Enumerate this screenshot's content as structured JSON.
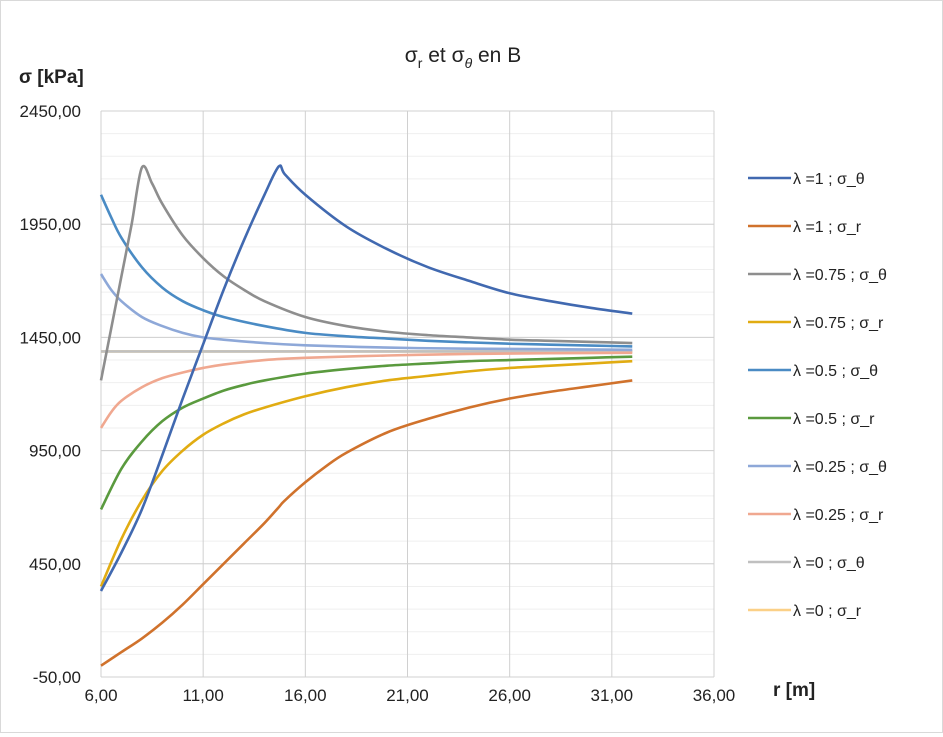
{
  "chart_data": {
    "type": "line",
    "title": {
      "base1": "σ",
      "sub1": "r",
      "mid": " et σ",
      "sub2": "θ",
      "tail": " en B"
    },
    "ylabel": "σ [kPa]",
    "xlabel": "r [m]",
    "xlim": [
      6,
      36
    ],
    "ylim": [
      -50,
      2450
    ],
    "xticks": [
      6,
      11,
      16,
      21,
      26,
      31,
      36
    ],
    "xtick_labels": [
      "6,00",
      "11,00",
      "16,00",
      "21,00",
      "26,00",
      "31,00",
      "36,00"
    ],
    "yticks": [
      -50,
      450,
      950,
      1450,
      1950,
      2450
    ],
    "ytick_labels": [
      "-50,00",
      "450,00",
      "950,00",
      "1450,00",
      "1950,00",
      "2450,00"
    ],
    "grid": true,
    "legend_position": "right",
    "series": [
      {
        "name": "λ =1 ; σ_θ",
        "color": "#4169b0",
        "points": [
          [
            6,
            330
          ],
          [
            7,
            500
          ],
          [
            8,
            690
          ],
          [
            9,
            930
          ],
          [
            10,
            1180
          ],
          [
            11,
            1420
          ],
          [
            12,
            1660
          ],
          [
            13,
            1880
          ],
          [
            14,
            2080
          ],
          [
            14.7,
            2205
          ],
          [
            15,
            2170
          ],
          [
            16,
            2080
          ],
          [
            18,
            1940
          ],
          [
            20,
            1840
          ],
          [
            22,
            1760
          ],
          [
            24,
            1700
          ],
          [
            26,
            1645
          ],
          [
            28,
            1610
          ],
          [
            30,
            1580
          ],
          [
            32,
            1555
          ]
        ]
      },
      {
        "name": "λ =1 ; σ_r",
        "color": "#d0722c",
        "points": [
          [
            6,
            0
          ],
          [
            7,
            60
          ],
          [
            8,
            120
          ],
          [
            9,
            190
          ],
          [
            10,
            270
          ],
          [
            11,
            360
          ],
          [
            12,
            450
          ],
          [
            13,
            540
          ],
          [
            14,
            630
          ],
          [
            14.7,
            700
          ],
          [
            15,
            730
          ],
          [
            16,
            810
          ],
          [
            17,
            880
          ],
          [
            18,
            940
          ],
          [
            20,
            1030
          ],
          [
            22,
            1090
          ],
          [
            24,
            1140
          ],
          [
            26,
            1180
          ],
          [
            28,
            1210
          ],
          [
            30,
            1235
          ],
          [
            32,
            1260
          ]
        ]
      },
      {
        "name": "λ =0.75 ; σ_θ",
        "color": "#8e8e8e",
        "points": [
          [
            6,
            1260
          ],
          [
            6.5,
            1490
          ],
          [
            7,
            1720
          ],
          [
            7.5,
            1950
          ],
          [
            8,
            2200
          ],
          [
            8.5,
            2130
          ],
          [
            9,
            2040
          ],
          [
            10,
            1900
          ],
          [
            11,
            1800
          ],
          [
            12,
            1720
          ],
          [
            13,
            1660
          ],
          [
            14,
            1610
          ],
          [
            16,
            1540
          ],
          [
            18,
            1500
          ],
          [
            20,
            1475
          ],
          [
            22,
            1460
          ],
          [
            24,
            1450
          ],
          [
            26,
            1440
          ],
          [
            28,
            1435
          ],
          [
            30,
            1430
          ],
          [
            32,
            1425
          ]
        ]
      },
      {
        "name": "λ =0.75 ; σ_r",
        "color": "#e1ac12",
        "points": [
          [
            6,
            350
          ],
          [
            7,
            560
          ],
          [
            8,
            730
          ],
          [
            9,
            860
          ],
          [
            10,
            950
          ],
          [
            11,
            1020
          ],
          [
            12,
            1070
          ],
          [
            13,
            1110
          ],
          [
            14,
            1140
          ],
          [
            16,
            1190
          ],
          [
            18,
            1230
          ],
          [
            20,
            1260
          ],
          [
            22,
            1280
          ],
          [
            24,
            1300
          ],
          [
            26,
            1315
          ],
          [
            28,
            1325
          ],
          [
            30,
            1335
          ],
          [
            32,
            1345
          ]
        ]
      },
      {
        "name": "λ =0.5 ; σ_θ",
        "color": "#4a8bc4",
        "points": [
          [
            6,
            2080
          ],
          [
            6.5,
            1980
          ],
          [
            7,
            1890
          ],
          [
            8,
            1760
          ],
          [
            9,
            1670
          ],
          [
            10,
            1610
          ],
          [
            11,
            1570
          ],
          [
            12,
            1540
          ],
          [
            14,
            1500
          ],
          [
            16,
            1470
          ],
          [
            18,
            1455
          ],
          [
            20,
            1445
          ],
          [
            22,
            1435
          ],
          [
            24,
            1428
          ],
          [
            26,
            1422
          ],
          [
            28,
            1418
          ],
          [
            30,
            1414
          ],
          [
            32,
            1410
          ]
        ]
      },
      {
        "name": "λ =0.5 ; σ_r",
        "color": "#5a9a3e",
        "points": [
          [
            6,
            690
          ],
          [
            7,
            870
          ],
          [
            8,
            990
          ],
          [
            9,
            1080
          ],
          [
            10,
            1140
          ],
          [
            11,
            1180
          ],
          [
            12,
            1215
          ],
          [
            13,
            1240
          ],
          [
            14,
            1260
          ],
          [
            16,
            1290
          ],
          [
            18,
            1310
          ],
          [
            20,
            1325
          ],
          [
            22,
            1335
          ],
          [
            24,
            1345
          ],
          [
            26,
            1350
          ],
          [
            28,
            1355
          ],
          [
            30,
            1360
          ],
          [
            32,
            1365
          ]
        ]
      },
      {
        "name": "λ =0.25 ; σ_θ",
        "color": "#8ea8d8",
        "points": [
          [
            6,
            1730
          ],
          [
            6.5,
            1660
          ],
          [
            7,
            1610
          ],
          [
            8,
            1540
          ],
          [
            9,
            1500
          ],
          [
            10,
            1470
          ],
          [
            11,
            1450
          ],
          [
            12,
            1440
          ],
          [
            14,
            1425
          ],
          [
            16,
            1415
          ],
          [
            20,
            1405
          ],
          [
            24,
            1400
          ],
          [
            28,
            1398
          ],
          [
            32,
            1395
          ]
        ]
      },
      {
        "name": "λ =0.25 ; σ_r",
        "color": "#f0a890",
        "points": [
          [
            6,
            1050
          ],
          [
            6.5,
            1120
          ],
          [
            7,
            1170
          ],
          [
            8,
            1230
          ],
          [
            9,
            1270
          ],
          [
            10,
            1295
          ],
          [
            11,
            1315
          ],
          [
            12,
            1330
          ],
          [
            14,
            1350
          ],
          [
            16,
            1360
          ],
          [
            20,
            1370
          ],
          [
            24,
            1377
          ],
          [
            28,
            1380
          ],
          [
            32,
            1382
          ]
        ]
      },
      {
        "name": "λ =0 ; σ_θ",
        "color": "#c0c0c0",
        "points": [
          [
            6,
            1388
          ],
          [
            32,
            1388
          ]
        ]
      },
      {
        "name": "λ =0 ; σ_r",
        "color": "#fbd087",
        "points": [
          [
            6,
            1388
          ],
          [
            32,
            1388
          ]
        ]
      }
    ]
  }
}
